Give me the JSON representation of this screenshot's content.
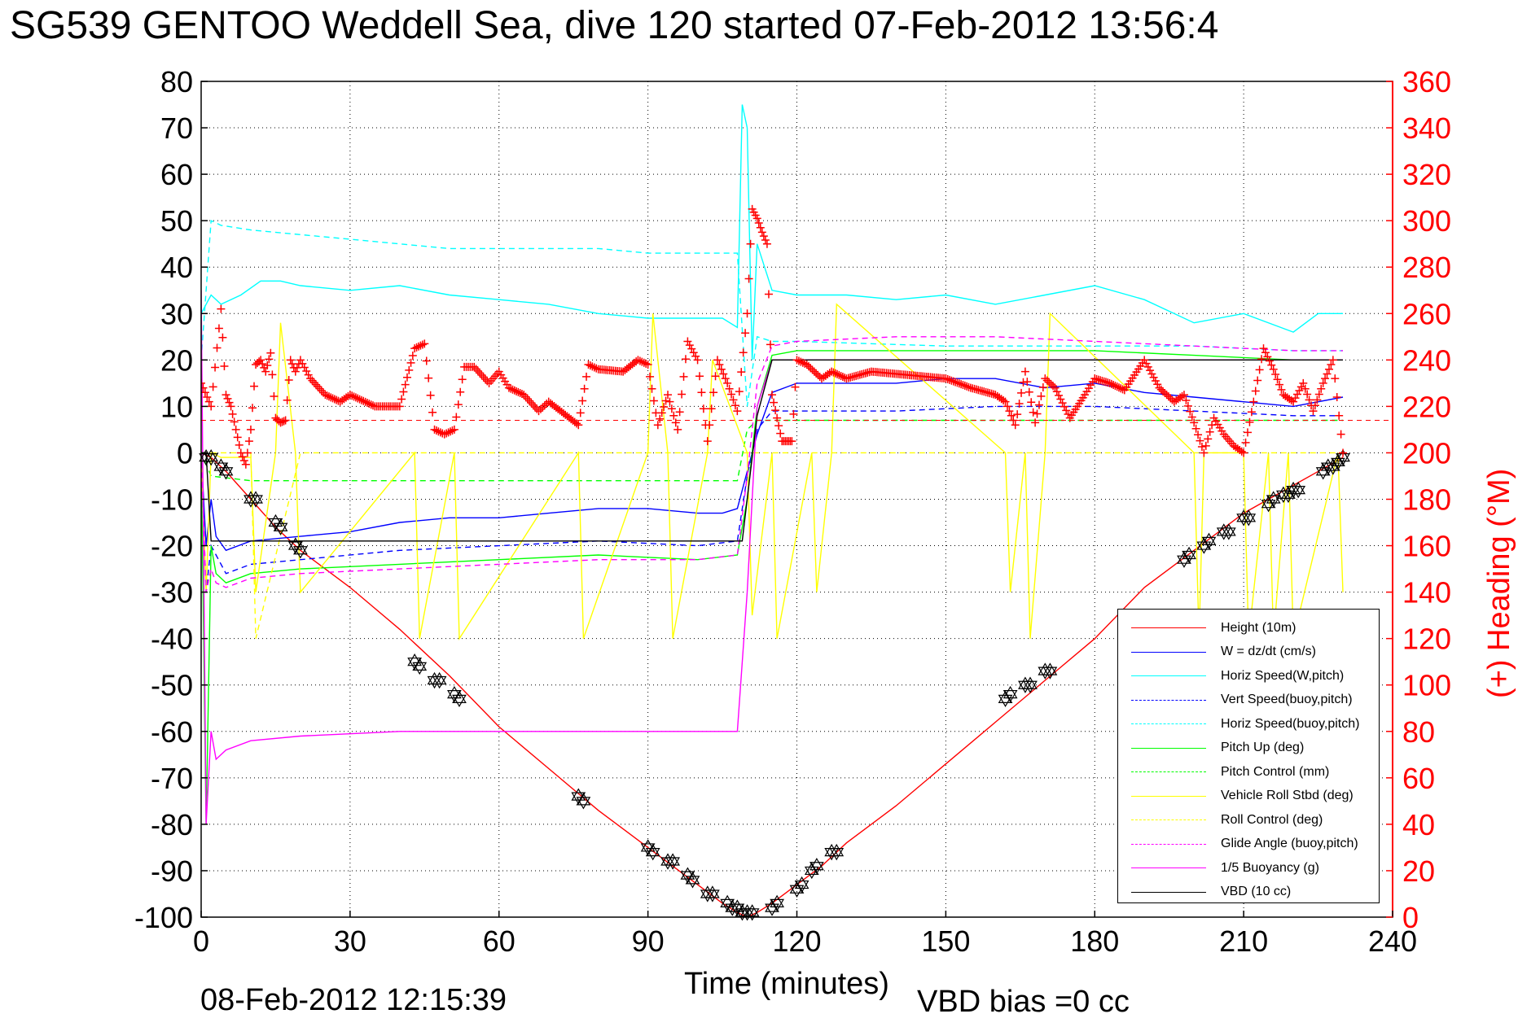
{
  "title": "SG539 GENTOO Weddell Sea, dive 120 started 07-Feb-2012 13:56:4",
  "footer": {
    "timestamp": "08-Feb-2012 12:15:39",
    "vbd_bias": "VBD bias =0 cc"
  },
  "chart_data": {
    "type": "line",
    "title": "SG539 GENTOO Weddell Sea, dive 120 started 07-Feb-2012 13:56:4",
    "xlabel": "Time (minutes)",
    "ylabel": "",
    "y2label": "(+) Heading (°M)",
    "xlim": [
      0,
      240
    ],
    "ylim": [
      -100,
      80
    ],
    "y2lim": [
      0,
      360
    ],
    "x_ticks": [
      0,
      30,
      60,
      90,
      120,
      150,
      180,
      210,
      240
    ],
    "y_ticks": [
      80,
      70,
      60,
      50,
      40,
      30,
      20,
      10,
      0,
      -10,
      -20,
      -30,
      -40,
      -50,
      -60,
      -70,
      -80,
      -90,
      -100
    ],
    "y2_ticks": [
      360,
      340,
      320,
      300,
      280,
      260,
      240,
      220,
      200,
      180,
      160,
      140,
      120,
      100,
      80,
      60,
      40,
      20,
      0
    ],
    "grid": true,
    "legend_position": "bottom-right",
    "series": [
      {
        "name": "Height (10m)",
        "color": "#ff0000",
        "style": "solid",
        "axis": "left",
        "x": [
          0,
          2,
          5,
          10,
          15,
          20,
          30,
          40,
          50,
          60,
          70,
          80,
          90,
          100,
          105,
          108,
          110,
          112,
          115,
          120,
          125,
          130,
          140,
          150,
          160,
          170,
          180,
          190,
          200,
          210,
          220,
          225,
          230
        ],
        "y": [
          0,
          -1,
          -4,
          -10,
          -16,
          -21,
          -29,
          -38,
          -48,
          -59,
          -68,
          -77,
          -85,
          -93,
          -97,
          -99,
          -100,
          -99,
          -97,
          -93,
          -89,
          -84,
          -76,
          -67,
          -58,
          -49,
          -40,
          -29,
          -21,
          -13,
          -7,
          -4,
          -1
        ]
      },
      {
        "name": "W = dz/dt (cm/s)",
        "color": "#0000ff",
        "style": "solid",
        "axis": "left",
        "x": [
          0,
          1,
          2,
          3,
          5,
          10,
          20,
          30,
          40,
          50,
          60,
          70,
          80,
          90,
          100,
          105,
          108,
          110,
          112,
          115,
          120,
          130,
          140,
          150,
          160,
          170,
          180,
          190,
          200,
          210,
          220,
          230
        ],
        "y": [
          0,
          -20,
          -10,
          -18,
          -21,
          -19,
          -18,
          -17,
          -15,
          -14,
          -14,
          -13,
          -12,
          -12,
          -13,
          -13,
          -12,
          -4,
          4,
          13,
          15,
          15,
          15,
          16,
          16,
          14,
          15,
          13,
          12,
          11,
          10,
          12
        ]
      },
      {
        "name": "Horiz Speed(W,pitch)",
        "color": "#00ffff",
        "style": "solid",
        "axis": "left",
        "x": [
          0,
          2,
          4,
          8,
          12,
          16,
          20,
          30,
          40,
          50,
          60,
          70,
          80,
          90,
          100,
          105,
          108,
          109,
          110,
          111,
          112,
          115,
          120,
          130,
          140,
          150,
          160,
          170,
          180,
          190,
          200,
          210,
          220,
          225,
          230
        ],
        "y": [
          30,
          34,
          32,
          34,
          37,
          37,
          36,
          35,
          36,
          34,
          33,
          32,
          30,
          29,
          29,
          29,
          27,
          75,
          70,
          20,
          45,
          35,
          34,
          34,
          33,
          34,
          32,
          34,
          36,
          33,
          28,
          30,
          26,
          30,
          30
        ]
      },
      {
        "name": "Vert Speed(buoy,pitch)",
        "color": "#0000ff",
        "style": "dashed",
        "axis": "left",
        "x": [
          0,
          1,
          2,
          3,
          5,
          10,
          20,
          40,
          60,
          80,
          100,
          108,
          110,
          112,
          115,
          120,
          140,
          160,
          180,
          200,
          220,
          230
        ],
        "y": [
          0,
          -30,
          -20,
          -22,
          -26,
          -24,
          -23,
          -21,
          -20,
          -19,
          -20,
          -19,
          -5,
          5,
          9,
          9,
          9,
          10,
          10,
          9,
          8,
          8
        ]
      },
      {
        "name": "Horiz Speed(buoy,pitch)",
        "color": "#00ffff",
        "style": "dashed",
        "axis": "left",
        "x": [
          0,
          2,
          4,
          10,
          20,
          30,
          40,
          50,
          60,
          70,
          80,
          90,
          100,
          108,
          110,
          112,
          115,
          120,
          150,
          180,
          200,
          220,
          230
        ],
        "y": [
          20,
          50,
          49,
          48,
          47,
          46,
          45,
          44,
          44,
          44,
          44,
          43,
          43,
          43,
          10,
          25,
          24,
          24,
          23,
          23,
          23,
          22,
          22
        ]
      },
      {
        "name": "Pitch Up (deg)",
        "color": "#00ff00",
        "style": "solid",
        "axis": "left",
        "x": [
          0,
          1,
          2,
          3,
          5,
          10,
          20,
          40,
          60,
          80,
          100,
          108,
          110,
          112,
          115,
          120,
          140,
          160,
          180,
          200,
          220,
          230
        ],
        "y": [
          0,
          -80,
          -20,
          -26,
          -28,
          -26,
          -25,
          -24,
          -23,
          -22,
          -23,
          -22,
          -10,
          10,
          21,
          22,
          22,
          22,
          22,
          21,
          20,
          20
        ]
      },
      {
        "name": "Pitch Control (mm)",
        "color": "#00ff00",
        "style": "dashed",
        "axis": "left",
        "x": [
          0,
          2,
          10,
          50,
          100,
          108,
          110,
          112,
          120,
          160,
          200,
          230
        ],
        "y": [
          0,
          -5,
          -6,
          -6,
          -6,
          -6,
          5,
          7,
          7,
          7,
          7,
          7
        ]
      },
      {
        "name": "Vehicle Roll Stbd (deg)",
        "color": "#ffff00",
        "style": "solid",
        "axis": "left",
        "x": [
          0,
          1,
          2,
          4,
          10,
          11,
          15,
          16,
          19,
          20,
          43,
          44,
          51,
          52,
          76,
          77,
          90,
          91,
          94,
          95,
          102,
          103,
          110,
          111,
          115,
          116,
          123,
          124,
          127,
          128,
          162,
          163,
          166,
          167,
          170,
          171,
          200,
          201,
          202,
          210,
          211,
          215,
          216,
          219,
          220,
          229,
          230
        ],
        "y": [
          0,
          -30,
          0,
          -1,
          -1,
          -30,
          0,
          28,
          0,
          -30,
          0,
          -40,
          0,
          -40,
          0,
          -40,
          0,
          30,
          0,
          -40,
          0,
          20,
          0,
          -35,
          0,
          -40,
          0,
          -30,
          0,
          32,
          0,
          -30,
          0,
          -40,
          0,
          30,
          0,
          -40,
          0,
          0,
          -40,
          0,
          -40,
          0,
          -40,
          0,
          -30
        ]
      },
      {
        "name": "Roll Control (deg)",
        "color": "#ffff00",
        "style": "dashed",
        "axis": "left",
        "x": [
          0,
          10,
          11,
          20,
          44,
          52,
          77,
          95,
          103,
          111,
          116,
          124,
          128,
          163,
          167,
          202,
          211,
          216,
          220,
          230
        ],
        "y": [
          0,
          0,
          -40,
          0,
          0,
          0,
          0,
          0,
          0,
          0,
          0,
          0,
          0,
          0,
          0,
          0,
          0,
          0,
          0,
          0
        ]
      },
      {
        "name": "Glide Angle (buoy,pitch)",
        "color": "#ff00ff",
        "style": "dashed",
        "axis": "left",
        "x": [
          0,
          1,
          2,
          3,
          5,
          10,
          20,
          40,
          60,
          80,
          100,
          108,
          110,
          112,
          115,
          120,
          140,
          160,
          180,
          200,
          220,
          230
        ],
        "y": [
          0,
          -30,
          -25,
          -28,
          -29,
          -27,
          -26,
          -25,
          -24,
          -23,
          -23,
          -22,
          -5,
          15,
          23,
          24,
          25,
          25,
          24,
          23,
          22,
          22
        ]
      },
      {
        "name": "1/5 Buoyancy (g)",
        "color": "#ff00ff",
        "style": "solid",
        "axis": "left",
        "x": [
          0,
          1,
          2,
          3,
          5,
          10,
          20,
          40,
          60,
          80,
          100,
          108,
          110,
          112,
          115,
          120,
          150,
          180,
          200,
          220,
          230
        ],
        "y": [
          35,
          -80,
          -60,
          -66,
          -64,
          -62,
          -61,
          -60,
          -60,
          -60,
          -60,
          -60,
          -30,
          10,
          20,
          20,
          20,
          20,
          20,
          20,
          20
        ]
      },
      {
        "name": "VBD (10 cc)",
        "color": "#000000",
        "style": "solid",
        "axis": "left",
        "x": [
          0,
          1,
          2,
          108,
          109,
          112,
          115,
          230
        ],
        "y": [
          0,
          0,
          -19,
          -19,
          -19,
          8,
          20,
          20
        ]
      }
    ],
    "heading": {
      "name": "(+) Heading (°M)",
      "color": "#ff0000",
      "axis": "right",
      "marker": "+",
      "x": [
        0,
        2,
        4,
        5,
        6,
        7,
        8,
        9,
        10,
        11,
        12,
        13,
        14,
        15,
        16,
        17,
        18,
        19,
        20,
        22,
        25,
        28,
        30,
        35,
        40,
        43,
        45,
        47,
        49,
        51,
        53,
        55,
        58,
        60,
        62,
        65,
        68,
        70,
        73,
        76,
        78,
        80,
        85,
        88,
        90,
        92,
        94,
        96,
        98,
        100,
        102,
        104,
        106,
        108,
        110,
        111,
        112,
        113,
        114,
        115,
        116,
        117,
        118,
        119,
        120,
        122,
        125,
        127,
        130,
        135,
        140,
        145,
        150,
        155,
        160,
        162,
        164,
        166,
        168,
        170,
        172,
        175,
        178,
        180,
        183,
        186,
        190,
        193,
        196,
        198,
        200,
        202,
        204,
        206,
        208,
        210,
        212,
        214,
        216,
        218,
        220,
        222,
        224,
        226,
        228,
        230
      ],
      "y": [
        230,
        220,
        262,
        225,
        220,
        210,
        200,
        195,
        210,
        238,
        240,
        235,
        243,
        215,
        213,
        214,
        240,
        235,
        240,
        232,
        225,
        222,
        225,
        220,
        220,
        245,
        247,
        210,
        208,
        210,
        237,
        237,
        230,
        235,
        228,
        225,
        218,
        222,
        217,
        212,
        238,
        236,
        235,
        240,
        238,
        212,
        225,
        210,
        248,
        240,
        205,
        240,
        230,
        218,
        260,
        305,
        301,
        295,
        290,
        225,
        215,
        205,
        205,
        205,
        240,
        238,
        232,
        235,
        232,
        235,
        234,
        233,
        232,
        228,
        225,
        222,
        212,
        235,
        213,
        232,
        228,
        215,
        225,
        232,
        230,
        227,
        240,
        228,
        222,
        225,
        213,
        200,
        215,
        208,
        203,
        200,
        222,
        245,
        236,
        225,
        222,
        230,
        218,
        230,
        240,
        200
      ]
    },
    "markers": {
      "name": "dive markers",
      "color": "#000000",
      "marker": "hexagram",
      "x": [
        1,
        2,
        4,
        5,
        10,
        11,
        15,
        16,
        19,
        20,
        43,
        44,
        47,
        48,
        51,
        52,
        76,
        77,
        90,
        91,
        94,
        95,
        98,
        99,
        102,
        103,
        106,
        107,
        108,
        109,
        110,
        111,
        115,
        116,
        120,
        121,
        123,
        124,
        127,
        128,
        162,
        163,
        166,
        167,
        170,
        171,
        198,
        199,
        202,
        203,
        206,
        207,
        210,
        211,
        215,
        216,
        218,
        219,
        220,
        221,
        226,
        227,
        228,
        229,
        230
      ],
      "y": [
        -1,
        -1,
        -3,
        -4,
        -10,
        -10,
        -15,
        -16,
        -20,
        -21,
        -45,
        -46,
        -49,
        -49,
        -52,
        -53,
        -74,
        -75,
        -85,
        -86,
        -88,
        -88,
        -91,
        -92,
        -95,
        -95,
        -97,
        -98,
        -98,
        -99,
        -99,
        -99,
        -98,
        -97,
        -94,
        -93,
        -90,
        -89,
        -86,
        -86,
        -53,
        -52,
        -50,
        -50,
        -47,
        -47,
        -23,
        -22,
        -20,
        -19,
        -17,
        -17,
        -14,
        -14,
        -11,
        -10,
        -9,
        -9,
        -8,
        -8,
        -4,
        -3,
        -3,
        -2,
        -1
      ]
    }
  }
}
